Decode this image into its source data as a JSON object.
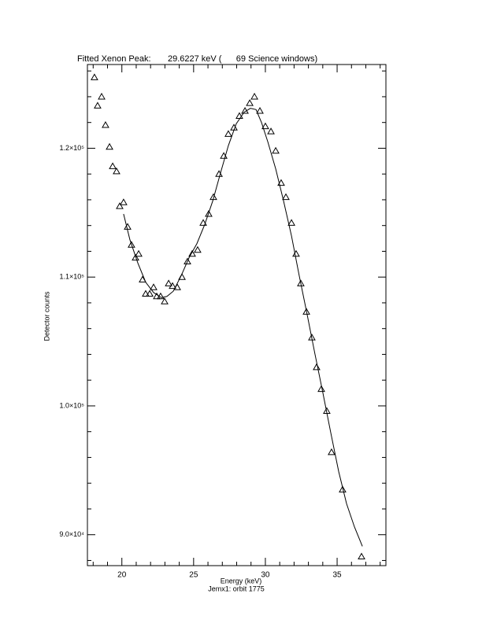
{
  "chart_data": {
    "type": "scatter",
    "title": "Fitted Xenon Peak:       29.6227 keV (      69 Science windows)",
    "xlabel": "Energy (keV)",
    "subtitle": "Jemx1: orbit 1775",
    "ylabel": "Detector counts",
    "color": "#000000",
    "xlim": [
      17.6,
      38.4
    ],
    "ylim": [
      87600,
      126500
    ],
    "xticks": [
      20,
      25,
      30,
      35
    ],
    "xminorticks": [
      18,
      19,
      21,
      22,
      23,
      24,
      26,
      27,
      28,
      29,
      31,
      32,
      33,
      34,
      36,
      37,
      38
    ],
    "yticks": [
      {
        "value": 90000,
        "label": "9.0×10⁴"
      },
      {
        "value": 100000,
        "label": "1.0×10⁵"
      },
      {
        "value": 110000,
        "label": "1.1×10⁵"
      },
      {
        "value": 120000,
        "label": "1.2×10⁵"
      }
    ],
    "yminorticks": [
      88000,
      92000,
      94000,
      96000,
      98000,
      102000,
      104000,
      106000,
      108000,
      112000,
      114000,
      116000,
      118000,
      122000,
      124000,
      126000
    ],
    "series": [
      {
        "type": "scatter",
        "marker": "triangle",
        "x": [
          18.09,
          18.31,
          18.59,
          18.86,
          19.14,
          19.36,
          19.63,
          19.85,
          20.12,
          20.4,
          20.67,
          20.95,
          21.17,
          21.44,
          21.66,
          21.94,
          22.21,
          22.43,
          22.7,
          22.98,
          23.26,
          23.53,
          23.86,
          24.19,
          24.57,
          24.9,
          25.28,
          25.67,
          26.05,
          26.38,
          26.77,
          27.1,
          27.42,
          27.81,
          28.19,
          28.58,
          28.91,
          29.24,
          29.62,
          30.0,
          30.39,
          30.72,
          31.1,
          31.43,
          31.82,
          32.14,
          32.47,
          32.86,
          33.24,
          33.57,
          33.9,
          34.28,
          34.61,
          35.38,
          36.7
        ],
        "values": [
          125500,
          123300,
          124000,
          121800,
          120100,
          118600,
          118200,
          115500,
          115800,
          113900,
          112500,
          111500,
          111800,
          109800,
          108700,
          108700,
          109200,
          108500,
          108500,
          108100,
          109500,
          109300,
          109200,
          110000,
          111200,
          111800,
          112100,
          114200,
          114900,
          116200,
          118000,
          119400,
          121100,
          121600,
          122500,
          122900,
          123500,
          124000,
          122900,
          121700,
          121300,
          119800,
          117300,
          116200,
          114200,
          111800,
          109500,
          107300,
          105300,
          103000,
          101300,
          99600,
          96400,
          93500,
          88300
        ]
      },
      {
        "type": "line",
        "x": [
          20.12,
          20.56,
          21.11,
          21.66,
          22.21,
          22.76,
          23.14,
          23.58,
          24.13,
          24.68,
          25.23,
          25.78,
          26.33,
          26.88,
          27.42,
          27.97,
          28.52,
          28.96,
          29.35,
          29.73,
          30.17,
          30.72,
          31.27,
          31.82,
          32.36,
          32.91,
          33.46,
          34.01,
          34.56,
          35.11,
          35.66,
          36.21,
          36.76
        ],
        "values": [
          114900,
          112900,
          111100,
          109600,
          108800,
          108400,
          108500,
          108900,
          110100,
          111500,
          112600,
          114100,
          115900,
          118100,
          120200,
          121900,
          122800,
          123100,
          123000,
          122000,
          120500,
          118400,
          115900,
          113200,
          110100,
          107100,
          104000,
          101000,
          97900,
          94900,
          92400,
          90600,
          89100
        ]
      }
    ]
  }
}
